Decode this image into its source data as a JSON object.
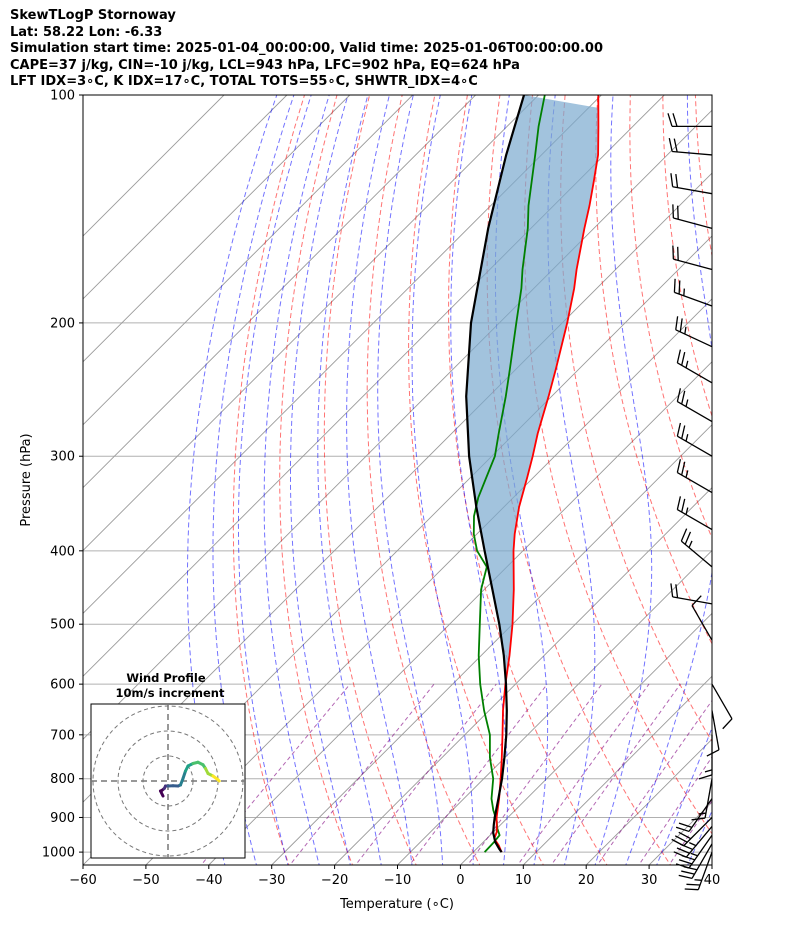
{
  "header": {
    "title": "SkewTLogP Stornoway",
    "location": "Lat: 58.22   Lon: -6.33",
    "times": "Simulation start time: 2025-01-04_00:00:00, Valid time: 2025-01-06T00:00:00.00",
    "indices": "CAPE=37 j/kg, CIN=-10 j/kg, LCL=943 hPa, LFC=902 hPa, EQ=624 hPa",
    "indices2": "LFT IDX=3∘C, K IDX=17∘C, TOTAL TOTS=55∘C, SHWTR_IDX=4∘C"
  },
  "colors": {
    "temperature": "#ff0000",
    "dewpoint": "#008000",
    "parcel": "#000000",
    "cape_fill": "#7aa9cf",
    "dry_adiabat": "#ff0000",
    "moist_adiabat": "#0000ff",
    "mixing_ratio": "#800080",
    "isotherm": "#9a9a9a"
  },
  "chart_data": {
    "type": "line",
    "subtype": "skew-t log-p",
    "xlabel": "Temperature (∘C)",
    "ylabel": "Pressure (hPa)",
    "xlim": [
      -60,
      40
    ],
    "ylim": [
      1040,
      100
    ],
    "x_ticks": [
      -60,
      -50,
      -40,
      -30,
      -20,
      -10,
      0,
      10,
      20,
      30,
      40
    ],
    "x_tick_labels": [
      "−60",
      "−50",
      "−40",
      "−30",
      "−20",
      "−10",
      "0",
      "10",
      "20",
      "30",
      "40"
    ],
    "y_ticks": [
      1000,
      900,
      800,
      700,
      600,
      500,
      400,
      300,
      200,
      100
    ],
    "y_tick_labels": [
      "1000",
      "900",
      "800",
      "700",
      "600",
      "500",
      "400",
      "300",
      "200",
      "100"
    ],
    "grid": true,
    "series": [
      {
        "name": "temperature",
        "points": [
          [
            1000,
            4.5
          ],
          [
            980,
            3.0
          ],
          [
            960,
            1.2
          ],
          [
            940,
            0.5
          ],
          [
            900,
            -1.8
          ],
          [
            850,
            -4.4
          ],
          [
            800,
            -7.3
          ],
          [
            750,
            -10.5
          ],
          [
            700,
            -14.0
          ],
          [
            650,
            -17.8
          ],
          [
            600,
            -21.6
          ],
          [
            550,
            -25.5
          ],
          [
            500,
            -30.0
          ],
          [
            450,
            -35.3
          ],
          [
            400,
            -41.5
          ],
          [
            380,
            -44.0
          ],
          [
            350,
            -47.6
          ],
          [
            320,
            -51.0
          ],
          [
            300,
            -53.5
          ],
          [
            280,
            -56.3
          ],
          [
            250,
            -60.5
          ],
          [
            230,
            -63.7
          ],
          [
            200,
            -69.2
          ],
          [
            180,
            -73.6
          ],
          [
            170,
            -76.2
          ],
          [
            150,
            -81.5
          ],
          [
            140,
            -84.3
          ],
          [
            130,
            -87.5
          ],
          [
            120,
            -91.0
          ],
          [
            110,
            -95.5
          ],
          [
            100,
            -100.5
          ]
        ]
      },
      {
        "name": "dewpoint",
        "points": [
          [
            1000,
            1.8
          ],
          [
            970,
            1.7
          ],
          [
            950,
            1.5
          ],
          [
            930,
            0.0
          ],
          [
            910,
            -1.2
          ],
          [
            880,
            -3.5
          ],
          [
            850,
            -5.6
          ],
          [
            800,
            -8.5
          ],
          [
            750,
            -12.4
          ],
          [
            700,
            -16.0
          ],
          [
            650,
            -20.8
          ],
          [
            600,
            -25.6
          ],
          [
            550,
            -30.4
          ],
          [
            500,
            -35.2
          ],
          [
            450,
            -40.5
          ],
          [
            420,
            -43.2
          ],
          [
            400,
            -47.3
          ],
          [
            380,
            -50.5
          ],
          [
            360,
            -53.3
          ],
          [
            340,
            -55.6
          ],
          [
            320,
            -57.5
          ],
          [
            300,
            -59.5
          ],
          [
            280,
            -62.5
          ],
          [
            250,
            -67.3
          ],
          [
            230,
            -71.0
          ],
          [
            200,
            -77.3
          ],
          [
            180,
            -82.0
          ],
          [
            170,
            -84.8
          ],
          [
            150,
            -90.5
          ],
          [
            140,
            -94.0
          ],
          [
            120,
            -101.0
          ],
          [
            110,
            -105.0
          ],
          [
            100,
            -109.0
          ]
        ]
      },
      {
        "name": "parcel",
        "points": [
          [
            1000,
            4.5
          ],
          [
            990,
            3.6
          ],
          [
            970,
            1.9
          ],
          [
            943,
            0.1
          ],
          [
            920,
            -1.1
          ],
          [
            900,
            -2.1
          ],
          [
            850,
            -4.5
          ],
          [
            800,
            -7.1
          ],
          [
            750,
            -10.1
          ],
          [
            700,
            -13.4
          ],
          [
            650,
            -17.2
          ],
          [
            600,
            -21.5
          ],
          [
            550,
            -26.4
          ],
          [
            500,
            -32.1
          ],
          [
            450,
            -38.7
          ],
          [
            400,
            -46.1
          ],
          [
            350,
            -54.4
          ],
          [
            300,
            -63.6
          ],
          [
            250,
            -73.6
          ],
          [
            200,
            -84.5
          ],
          [
            150,
            -96.8
          ],
          [
            120,
            -105.6
          ],
          [
            100,
            -112.3
          ]
        ]
      }
    ],
    "cape_region": {
      "from_hpa": 624,
      "to_hpa": 100
    },
    "wind_barbs": [
      {
        "p": 1000,
        "dir": 200,
        "spd": 25
      },
      {
        "p": 975,
        "dir": 210,
        "spd": 30
      },
      {
        "p": 950,
        "dir": 215,
        "spd": 35
      },
      {
        "p": 925,
        "dir": 220,
        "spd": 35
      },
      {
        "p": 900,
        "dir": 225,
        "spd": 30
      },
      {
        "p": 850,
        "dir": 215,
        "spd": 20
      },
      {
        "p": 800,
        "dir": 190,
        "spd": 15
      },
      {
        "p": 700,
        "dir": 180,
        "spd": 15
      },
      {
        "p": 650,
        "dir": 170,
        "spd": 10
      },
      {
        "p": 600,
        "dir": 150,
        "spd": 10
      },
      {
        "p": 525,
        "dir": 330,
        "spd": 10
      },
      {
        "p": 470,
        "dir": 280,
        "spd": 20
      },
      {
        "p": 420,
        "dir": 310,
        "spd": 25
      },
      {
        "p": 375,
        "dir": 300,
        "spd": 25
      },
      {
        "p": 335,
        "dir": 300,
        "spd": 25
      },
      {
        "p": 300,
        "dir": 300,
        "spd": 25
      },
      {
        "p": 270,
        "dir": 300,
        "spd": 25
      },
      {
        "p": 240,
        "dir": 300,
        "spd": 25
      },
      {
        "p": 215,
        "dir": 295,
        "spd": 25
      },
      {
        "p": 190,
        "dir": 290,
        "spd": 25
      },
      {
        "p": 170,
        "dir": 285,
        "spd": 20
      },
      {
        "p": 150,
        "dir": 285,
        "spd": 20
      },
      {
        "p": 135,
        "dir": 280,
        "spd": 20
      },
      {
        "p": 120,
        "dir": 275,
        "spd": 20
      },
      {
        "p": 110,
        "dir": 270,
        "spd": 20
      }
    ],
    "hodograph": {
      "title": "Wind Profile",
      "subtitle": "10m/s increment",
      "rings_ms": [
        10,
        20,
        30
      ],
      "points": [
        [
          -2,
          -6
        ],
        [
          -3,
          -4
        ],
        [
          -2.5,
          -3.8
        ],
        [
          -1.5,
          -3
        ],
        [
          -1,
          -2
        ],
        [
          0,
          -2
        ],
        [
          2,
          -1.9
        ],
        [
          4,
          -2
        ],
        [
          5,
          -1.6
        ],
        [
          6,
          1
        ],
        [
          7,
          4
        ],
        [
          8,
          6
        ],
        [
          10,
          7
        ],
        [
          12,
          7.5
        ],
        [
          14,
          6.5
        ],
        [
          15,
          5
        ],
        [
          16,
          3
        ],
        [
          18,
          2
        ],
        [
          20,
          0.5
        ],
        [
          20.5,
          0
        ]
      ]
    }
  }
}
